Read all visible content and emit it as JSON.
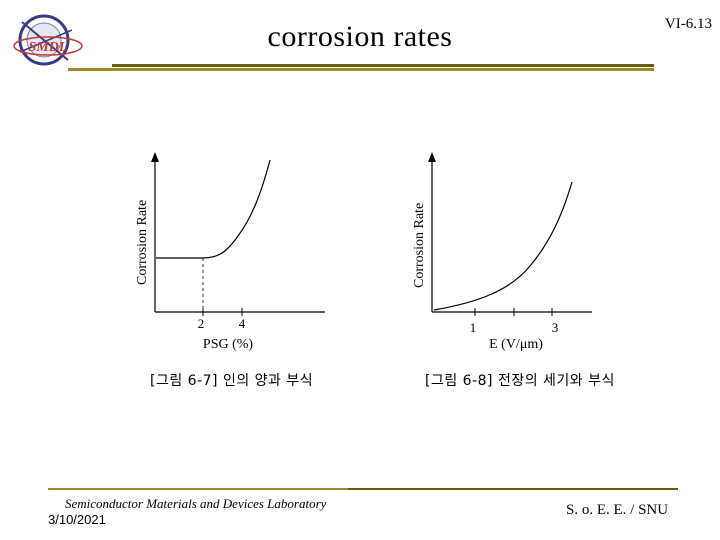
{
  "header": {
    "logo_text": "SMDL",
    "title": "corrosion rates",
    "slide_number": "VI-6.13"
  },
  "charts": {
    "left": {
      "ylabel": "Corrosion Rate",
      "xlabel": "PSG (%)",
      "ticks": [
        "2",
        "4"
      ],
      "caption": "[그림 6-7] 인의 양과 부식"
    },
    "right": {
      "ylabel": "Corrosion Rate",
      "xlabel": "E (V/μm)",
      "ticks": [
        "1",
        "3"
      ],
      "caption": "[그림 6-8] 전장의 세기와 부식"
    }
  },
  "footer": {
    "lab": "Semiconductor Materials and Devices Laboratory",
    "date": "3/10/2021",
    "org": "S. o. E. E. / SNU"
  },
  "colors": {
    "rule_light": "#9a8a2a",
    "rule_dark": "#6b5d10",
    "logo_ring": "#3a3a8a",
    "logo_text": "#c0392b"
  }
}
